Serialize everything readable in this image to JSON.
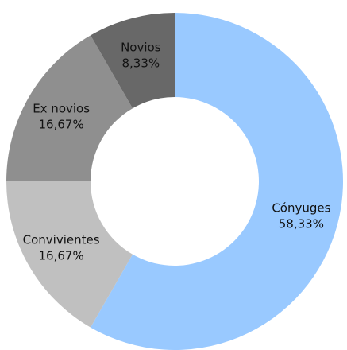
{
  "chart_data": {
    "type": "pie",
    "style": "donut",
    "slices": [
      {
        "label": "Cónyuges",
        "value": 58.33,
        "display": "58,33%",
        "color": "#99c9ff"
      },
      {
        "label": "Convivientes",
        "value": 16.67,
        "display": "16,67%",
        "color": "#c0c0c0"
      },
      {
        "label": "Ex novios",
        "value": 16.67,
        "display": "16,67%",
        "color": "#8f8f8f"
      },
      {
        "label": "Novios",
        "value": 8.33,
        "display": "8,33%",
        "color": "#686868"
      }
    ],
    "start_angle_deg": 0,
    "direction": "clockwise",
    "legend": "none",
    "grid": false
  }
}
